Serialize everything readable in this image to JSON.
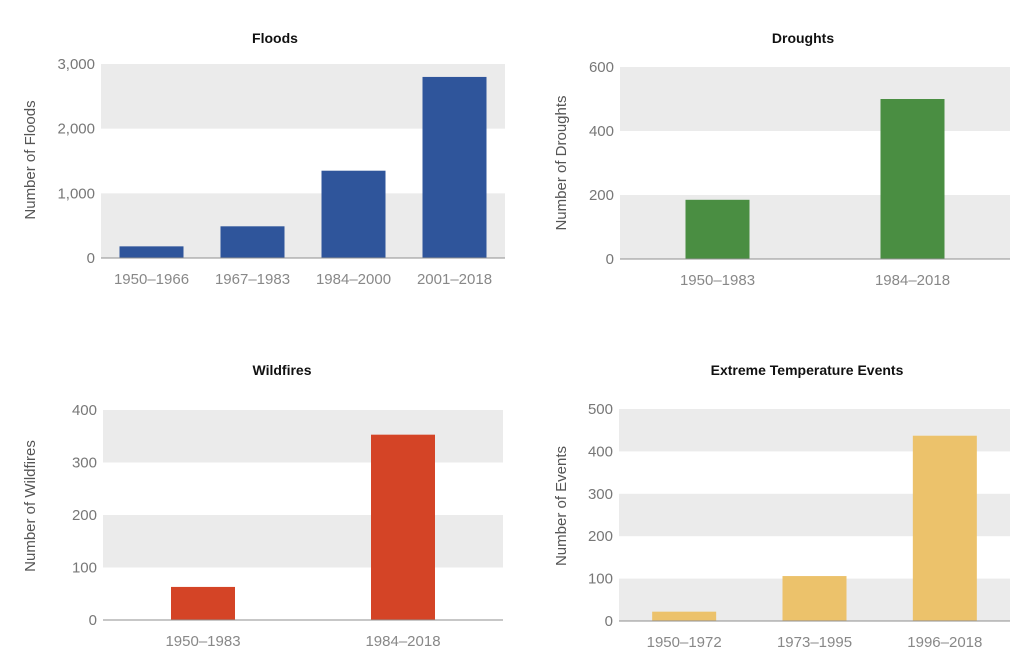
{
  "colors": {
    "band": "#ebebeb",
    "baseline": "#8f8f8f",
    "floods": "#2f559b",
    "droughts": "#4a8e42",
    "wildfires": "#d44426",
    "extreme": "#ecc26b"
  },
  "chart_data": [
    {
      "type": "bar",
      "title": "Floods",
      "ylabel": "Number of Floods",
      "xlabel": "",
      "categories": [
        "1950–1966",
        "1967–1983",
        "1984–2000",
        "2001–2018"
      ],
      "values": [
        180,
        490,
        1350,
        2800
      ],
      "ylim": [
        0,
        3000
      ],
      "yticks": [
        0,
        1000,
        2000,
        3000
      ],
      "ytick_labels": [
        "0",
        "1,000",
        "2,000",
        "3,000"
      ],
      "color": "#2f559b",
      "grid": "alternating bands"
    },
    {
      "type": "bar",
      "title": "Droughts",
      "ylabel": "Number of Droughts",
      "xlabel": "",
      "categories": [
        "1950–1983",
        "1984–2018"
      ],
      "values": [
        185,
        500
      ],
      "ylim": [
        0,
        600
      ],
      "yticks": [
        0,
        200,
        400,
        600
      ],
      "ytick_labels": [
        "0",
        "200",
        "400",
        "600"
      ],
      "color": "#4a8e42",
      "grid": "alternating bands"
    },
    {
      "type": "bar",
      "title": "Wildfires",
      "ylabel": "Number of Wildfires",
      "xlabel": "",
      "categories": [
        "1950–1983",
        "1984–2018"
      ],
      "values": [
        63,
        353
      ],
      "ylim": [
        0,
        400
      ],
      "yticks": [
        0,
        100,
        200,
        300,
        400
      ],
      "ytick_labels": [
        "0",
        "100",
        "200",
        "300",
        "400"
      ],
      "color": "#d44426",
      "grid": "alternating bands"
    },
    {
      "type": "bar",
      "title": "Extreme Temperature Events",
      "ylabel": "Number of Events",
      "xlabel": "",
      "categories": [
        "1950–1972",
        "1973–1995",
        "1996–2018"
      ],
      "values": [
        22,
        106,
        437
      ],
      "ylim": [
        0,
        500
      ],
      "yticks": [
        0,
        100,
        200,
        300,
        400,
        500
      ],
      "ytick_labels": [
        "0",
        "100",
        "200",
        "300",
        "400",
        "500"
      ],
      "color": "#ecc26b",
      "grid": "alternating bands"
    }
  ]
}
